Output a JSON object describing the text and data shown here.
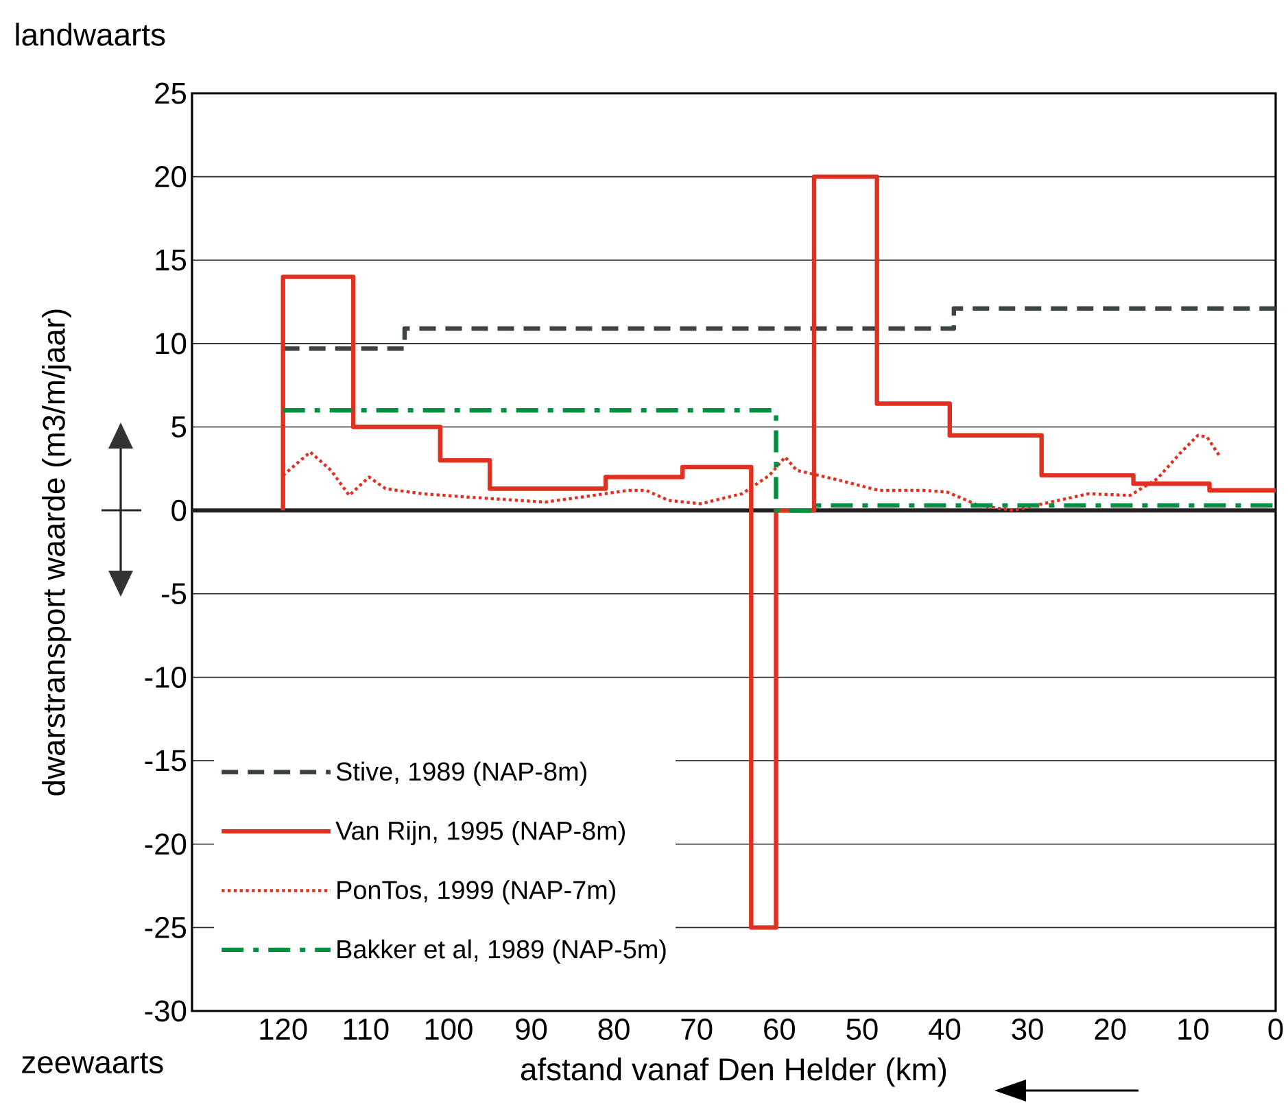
{
  "chart_data": {
    "type": "step",
    "xlabel": "afstand vanaf Den Helder (km)",
    "ylabel": "dwarstransport waarde  (m3/m/jaar)",
    "annotations": [
      "landwaarts",
      "zeewaarts"
    ],
    "xlim": [
      131,
      0
    ],
    "xticks": [
      120,
      110,
      100,
      90,
      80,
      70,
      60,
      50,
      40,
      30,
      20,
      10,
      0
    ],
    "ylim": [
      -30,
      25
    ],
    "yticks": [
      -30,
      -25,
      -20,
      -15,
      -10,
      -5,
      0,
      5,
      10,
      15,
      20,
      25
    ],
    "grid": "y",
    "legend": "bottom left",
    "ref_lines": [
      {
        "axis": "y",
        "value": 0,
        "color": "#231f20"
      }
    ],
    "series": [
      {
        "name": "Stive, 1989 (NAP-8m)",
        "color": "#3d4345",
        "line_style": "dashed",
        "x": [
          120,
          105.3,
          38.9,
          0
        ],
        "values": [
          9.7,
          10.9,
          12.1,
          12.1
        ]
      },
      {
        "name": "Van Rijn, 1995 (NAP-8m)",
        "color": "#e03020",
        "line_style": "solid",
        "x": [
          120,
          120,
          111.5,
          101,
          95,
          81,
          71.7,
          63.4,
          60.4,
          55.8,
          48.2,
          39.4,
          28.3,
          17.2,
          8,
          0
        ],
        "values": [
          0,
          14,
          5,
          3,
          1.3,
          2,
          2.6,
          -25,
          0,
          20,
          6.4,
          4.5,
          2.1,
          1.6,
          1.2,
          1.2
        ]
      },
      {
        "name": "PonTos, 1999 (NAP-7m)",
        "color": "#e03020",
        "line_style": "dotted",
        "type": "line",
        "x": [
          120,
          116.7,
          114.2,
          112,
          109.6,
          107.6,
          103.2,
          97.7,
          88.3,
          83.9,
          78.3,
          76.1,
          73.4,
          69.5,
          64.5,
          61.2,
          59.3,
          57.9,
          53.5,
          48,
          42.5,
          39.7,
          35.9,
          31.7,
          28.1,
          22.6,
          17.6,
          14.3,
          11.6,
          9.4,
          8.3,
          6.7
        ],
        "values": [
          2.1,
          3.5,
          2.4,
          0.9,
          2,
          1.3,
          1,
          0.8,
          0.5,
          0.8,
          1.2,
          1.2,
          0.6,
          0.4,
          1,
          2.1,
          3.2,
          2.4,
          1.9,
          1.2,
          1.2,
          1.1,
          0.3,
          0,
          0.4,
          1,
          0.9,
          1.9,
          3.4,
          4.5,
          4.4,
          3.2
        ]
      },
      {
        "name": "Bakker et al, 1989 (NAP-5m)",
        "color": "#009040",
        "line_style": "dashdot",
        "x": [
          120,
          60.4,
          55.8,
          0
        ],
        "values": [
          6,
          0,
          0.3,
          0.3
        ]
      }
    ]
  }
}
